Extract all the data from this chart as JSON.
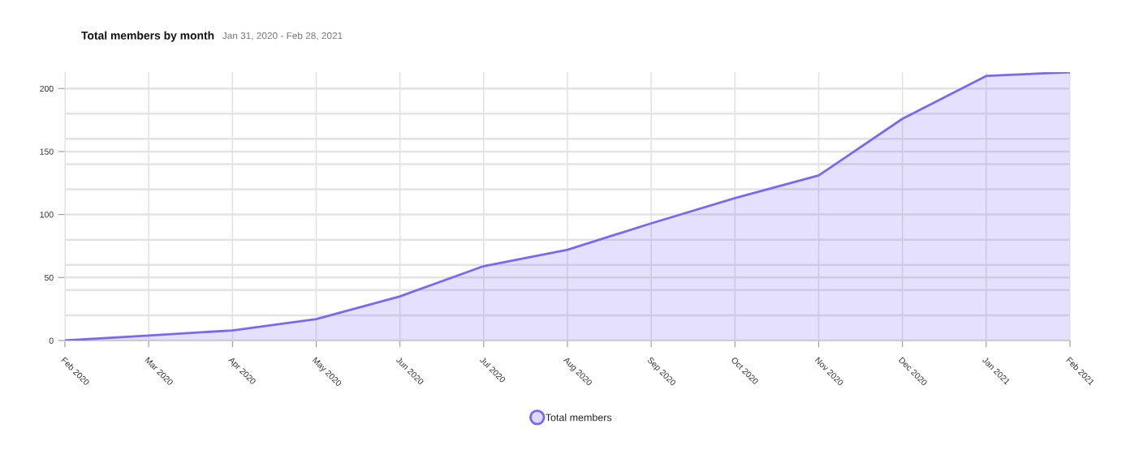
{
  "chart_data": {
    "type": "area",
    "title": "Total members by month",
    "subtitle": "Jan 31, 2020 - Feb 28, 2021",
    "categories": [
      "Feb 2020",
      "Mar 2020",
      "Apr 2020",
      "May 2020",
      "Jun 2020",
      "Jul 2020",
      "Aug 2020",
      "Sep 2020",
      "Oct 2020",
      "Nov 2020",
      "Dec 2020",
      "Jan 2021",
      "Feb 2021"
    ],
    "series": [
      {
        "name": "Total members",
        "color": "#7b68ee",
        "values": [
          0,
          4,
          8,
          17,
          35,
          59,
          72,
          93,
          113,
          131,
          176,
          210,
          213
        ]
      }
    ],
    "ylim": [
      0,
      213
    ],
    "yticks": [
      0,
      {
        "value": 20,
        "label": null
      },
      {
        "value": 40,
        "label": null
      },
      50,
      {
        "value": 60,
        "label": null
      },
      {
        "value": 80,
        "label": null
      },
      100,
      {
        "value": 120,
        "label": null
      },
      {
        "value": 140,
        "label": null
      },
      150,
      {
        "value": 160,
        "label": null
      },
      {
        "value": 180,
        "label": null
      },
      200
    ],
    "grid": true,
    "legend": "bottom"
  }
}
